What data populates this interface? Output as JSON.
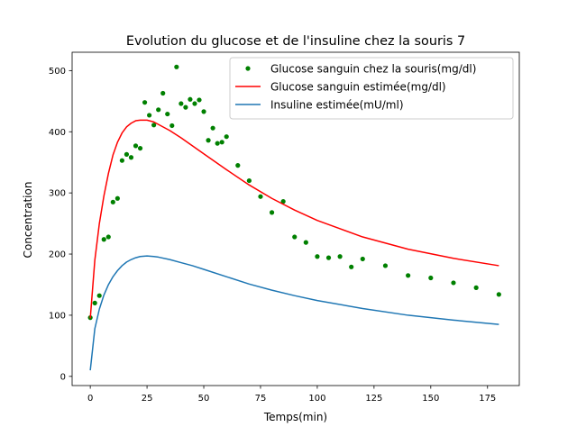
{
  "chart_data": {
    "type": "line",
    "title": "Evolution du glucose et de l'insuline chez la souris 7",
    "xlabel": "Temps(min)",
    "ylabel": "Concentration",
    "xlim": [
      -8,
      189
    ],
    "ylim": [
      -15,
      530
    ],
    "xticks": [
      0,
      25,
      50,
      75,
      100,
      125,
      150,
      175
    ],
    "yticks": [
      0,
      100,
      200,
      300,
      400,
      500
    ],
    "grid": false,
    "legend_position": "top-right",
    "series": [
      {
        "name": "Glucose sanguin chez la souris(mg/dl)",
        "kind": "scatter",
        "color": "#008000",
        "x": [
          0,
          2,
          4,
          6,
          8,
          10,
          12,
          14,
          16,
          18,
          20,
          22,
          24,
          26,
          28,
          30,
          32,
          34,
          36,
          38,
          40,
          42,
          44,
          46,
          48,
          50,
          52,
          54,
          56,
          58,
          60,
          65,
          70,
          75,
          80,
          85,
          90,
          95,
          100,
          105,
          110,
          115,
          120,
          130,
          140,
          150,
          160,
          170,
          180
        ],
        "y": [
          96,
          120,
          132,
          224,
          228,
          285,
          291,
          353,
          363,
          358,
          377,
          373,
          448,
          427,
          411,
          436,
          463,
          429,
          410,
          506,
          446,
          440,
          453,
          446,
          452,
          433,
          386,
          406,
          381,
          383,
          392,
          345,
          320,
          294,
          268,
          286,
          228,
          219,
          196,
          194,
          196,
          179,
          192,
          181,
          165,
          161,
          153,
          145,
          134
        ]
      },
      {
        "name": "Glucose sanguin estimée(mg/dl)",
        "kind": "line",
        "color": "#ff0000",
        "x": [
          0,
          2,
          4,
          6,
          8,
          10,
          12,
          14,
          16,
          18,
          20,
          22,
          25,
          28,
          30,
          35,
          40,
          45,
          50,
          60,
          70,
          80,
          90,
          100,
          120,
          140,
          160,
          180
        ],
        "y": [
          95,
          190,
          250,
          295,
          332,
          362,
          383,
          398,
          408,
          414,
          418,
          419,
          419,
          416,
          412,
          402,
          390,
          377,
          364,
          338,
          313,
          291,
          272,
          255,
          228,
          208,
          193,
          181
        ]
      },
      {
        "name": "Insuline estimée(mU/ml)",
        "kind": "line",
        "color": "#1f77b4",
        "x": [
          0,
          2,
          4,
          6,
          8,
          10,
          12,
          14,
          16,
          18,
          20,
          22,
          25,
          28,
          30,
          35,
          40,
          45,
          50,
          60,
          70,
          80,
          90,
          100,
          120,
          140,
          160,
          180
        ],
        "y": [
          10,
          78,
          110,
          133,
          150,
          163,
          173,
          181,
          187,
          191,
          194,
          196,
          197,
          196,
          195,
          191,
          186,
          181,
          175,
          163,
          151,
          141,
          132,
          124,
          111,
          100,
          92,
          85
        ]
      }
    ]
  }
}
